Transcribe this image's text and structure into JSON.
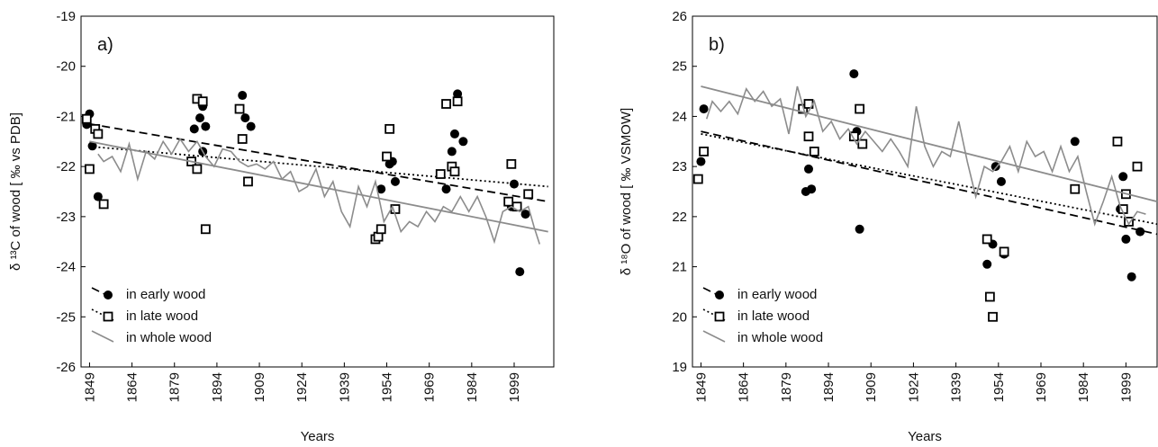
{
  "chart_data": [
    {
      "type": "scatter",
      "panel_label": "a)",
      "x_label": "Years",
      "y_label": "δ ¹³C of wood [ ‰ vs PDB]",
      "xlim": [
        1846,
        2013
      ],
      "xticks": [
        1849,
        1864,
        1879,
        1894,
        1909,
        1924,
        1939,
        1954,
        1969,
        1984,
        1999
      ],
      "ylim": [
        -26,
        -19
      ],
      "yticks": [
        -26,
        -25,
        -24,
        -23,
        -22,
        -21,
        -20,
        -19
      ],
      "legend": "lower left",
      "series": [
        {
          "name": "in early wood",
          "color": "#000000",
          "marker": "circle",
          "line_style": "dashed",
          "x": [
            1848,
            1849,
            1848,
            1850,
            1852,
            1886,
            1888,
            1889,
            1890,
            1889,
            1903,
            1904,
            1906,
            1952,
            1955,
            1956,
            1957,
            1975,
            1977,
            1978,
            1979,
            1981,
            1998,
            1999,
            2001,
            2003
          ],
          "values": [
            -21.12,
            -20.95,
            -21.16,
            -21.59,
            -22.6,
            -21.25,
            -21.03,
            -20.8,
            -21.2,
            -21.7,
            -20.58,
            -21.03,
            -21.2,
            -22.45,
            -21.95,
            -21.9,
            -22.3,
            -22.45,
            -21.7,
            -21.35,
            -20.55,
            -21.5,
            -22.8,
            -22.35,
            -24.1,
            -22.95
          ],
          "trend": {
            "x": [
              1849,
              2011
            ],
            "values": [
              -21.15,
              -22.7
            ]
          }
        },
        {
          "name": "in late wood",
          "color": "#000000",
          "marker": "square",
          "line_style": "dotted",
          "x": [
            1848,
            1849,
            1851,
            1852,
            1854,
            1885,
            1887,
            1887,
            1889,
            1890,
            1902,
            1903,
            1905,
            1950,
            1951,
            1952,
            1954,
            1955,
            1957,
            1973,
            1975,
            1977,
            1978,
            1979,
            1997,
            1998,
            2000,
            2004
          ],
          "values": [
            -21.05,
            -22.05,
            -21.25,
            -21.35,
            -22.75,
            -21.9,
            -22.05,
            -20.65,
            -20.7,
            -23.25,
            -20.85,
            -21.45,
            -22.3,
            -23.45,
            -23.4,
            -23.25,
            -21.8,
            -21.25,
            -22.85,
            -22.15,
            -20.75,
            -22.0,
            -22.1,
            -20.7,
            -22.7,
            -21.95,
            -22.8,
            -22.55
          ],
          "trend": {
            "x": [
              1849,
              2011
            ],
            "values": [
              -21.6,
              -22.4
            ]
          }
        },
        {
          "name": "in whole wood",
          "color": "#8c8c8c",
          "marker": null,
          "line_style": "solid",
          "x": [
            1852,
            1854,
            1857,
            1860,
            1863,
            1866,
            1869,
            1872,
            1875,
            1878,
            1881,
            1884,
            1887,
            1890,
            1893,
            1896,
            1899,
            1902,
            1905,
            1908,
            1911,
            1914,
            1917,
            1920,
            1923,
            1926,
            1929,
            1932,
            1935,
            1938,
            1941,
            1944,
            1947,
            1950,
            1953,
            1956,
            1959,
            1962,
            1965,
            1968,
            1971,
            1974,
            1977,
            1980,
            1983,
            1986,
            1989,
            1992,
            1995,
            1998,
            2001,
            2004,
            2006,
            2008
          ],
          "values": [
            -21.75,
            -21.9,
            -21.8,
            -22.1,
            -21.55,
            -22.25,
            -21.7,
            -21.85,
            -21.5,
            -21.75,
            -21.45,
            -21.7,
            -21.5,
            -21.8,
            -22.0,
            -21.65,
            -21.7,
            -21.9,
            -22.0,
            -21.95,
            -22.05,
            -21.9,
            -22.25,
            -22.1,
            -22.5,
            -22.4,
            -22.05,
            -22.6,
            -22.3,
            -22.9,
            -23.2,
            -22.4,
            -22.8,
            -22.3,
            -23.1,
            -22.8,
            -23.3,
            -23.1,
            -23.2,
            -22.9,
            -23.1,
            -22.8,
            -22.9,
            -22.6,
            -22.9,
            -22.6,
            -23.0,
            -23.5,
            -22.9,
            -22.8,
            -22.9,
            -22.8,
            -23.2,
            -23.55
          ],
          "trend": {
            "x": [
              1849,
              2011
            ],
            "values": [
              -21.5,
              -23.3
            ]
          }
        }
      ]
    },
    {
      "type": "scatter",
      "panel_label": "b)",
      "x_label": "Years",
      "y_label": "δ ¹⁸O of wood [ ‰ VSMOW]",
      "xlim": [
        1846,
        2010
      ],
      "xticks": [
        1849,
        1864,
        1879,
        1894,
        1909,
        1924,
        1939,
        1954,
        1969,
        1984,
        1999
      ],
      "ylim": [
        19,
        26
      ],
      "yticks": [
        19,
        20,
        21,
        22,
        23,
        24,
        25,
        26
      ],
      "legend": "lower left",
      "series": [
        {
          "name": "in early wood",
          "color": "#000000",
          "marker": "circle",
          "line_style": "dashed",
          "x": [
            1849,
            1850,
            1886,
            1887,
            1888,
            1903,
            1904,
            1905,
            1950,
            1952,
            1953,
            1955,
            1956,
            1981,
            1997,
            1998,
            1999,
            2001,
            2004
          ],
          "values": [
            23.1,
            24.15,
            22.5,
            22.95,
            22.55,
            24.85,
            23.7,
            21.75,
            21.05,
            21.45,
            23.0,
            22.7,
            21.25,
            23.5,
            22.15,
            22.8,
            21.55,
            20.8,
            21.7
          ],
          "trend": {
            "x": [
              1849,
              2010
            ],
            "values": [
              23.7,
              21.65
            ]
          }
        },
        {
          "name": "in late wood",
          "color": "#000000",
          "marker": "square",
          "line_style": "dotted",
          "x": [
            1848,
            1850,
            1885,
            1887,
            1887,
            1889,
            1903,
            1905,
            1906,
            1950,
            1951,
            1952,
            1956,
            1981,
            1996,
            1998,
            1999,
            2000,
            2003
          ],
          "values": [
            22.75,
            23.3,
            24.15,
            24.25,
            23.6,
            23.3,
            23.6,
            24.15,
            23.45,
            21.55,
            20.4,
            20.0,
            21.3,
            22.55,
            23.5,
            22.15,
            22.45,
            21.9,
            23.0
          ],
          "trend": {
            "x": [
              1849,
              2010
            ],
            "values": [
              23.65,
              21.85
            ]
          }
        },
        {
          "name": "in whole wood",
          "color": "#8c8c8c",
          "marker": null,
          "line_style": "solid",
          "x": [
            1851,
            1853,
            1856,
            1859,
            1862,
            1865,
            1868,
            1871,
            1874,
            1877,
            1880,
            1883,
            1886,
            1889,
            1892,
            1895,
            1898,
            1901,
            1904,
            1907,
            1910,
            1913,
            1916,
            1919,
            1922,
            1925,
            1928,
            1931,
            1934,
            1937,
            1940,
            1943,
            1946,
            1949,
            1952,
            1955,
            1958,
            1961,
            1964,
            1967,
            1970,
            1973,
            1976,
            1979,
            1982,
            1985,
            1988,
            1991,
            1994,
            1997,
            2000,
            2003,
            2006
          ],
          "values": [
            23.95,
            24.3,
            24.1,
            24.3,
            24.05,
            24.55,
            24.3,
            24.5,
            24.2,
            24.35,
            23.65,
            24.6,
            24.0,
            24.3,
            23.7,
            23.9,
            23.55,
            23.75,
            23.45,
            23.7,
            23.5,
            23.3,
            23.55,
            23.3,
            23.0,
            24.2,
            23.4,
            23.0,
            23.3,
            23.2,
            23.9,
            23.1,
            22.4,
            23.0,
            22.9,
            23.1,
            23.4,
            22.9,
            23.5,
            23.2,
            23.3,
            22.9,
            23.4,
            22.9,
            23.2,
            22.5,
            21.85,
            22.3,
            22.8,
            22.2,
            21.85,
            22.1,
            22.05
          ],
          "trend": {
            "x": [
              1849,
              2010
            ],
            "values": [
              24.6,
              22.3
            ]
          }
        }
      ]
    }
  ]
}
